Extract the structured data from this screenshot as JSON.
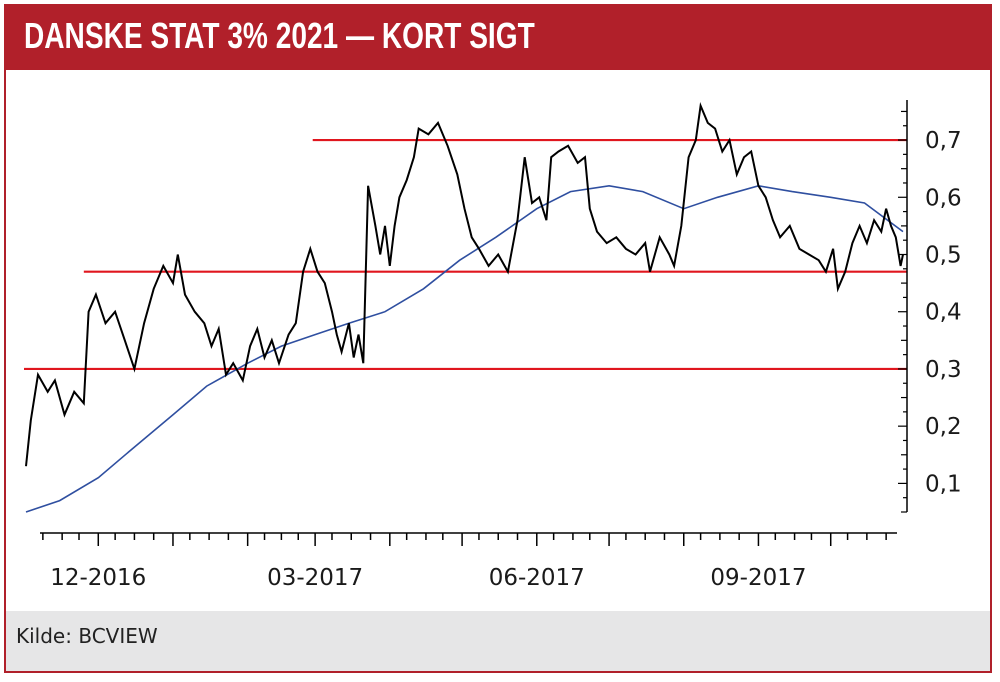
{
  "header": {
    "title": "DANSKE STAT 3% 2021 — KORT SIGT"
  },
  "footer": {
    "source": "Kilde: BCVIEW"
  },
  "colors": {
    "accent": "#b1202a",
    "price": "#000000",
    "average": "#2f4fa0",
    "level": "#e0161e"
  },
  "chart_data": {
    "type": "line",
    "title": "DANSKE STAT 3% 2021 — KORT SIGT",
    "xlabel": "",
    "ylabel": "",
    "ylim": [
      0.05,
      0.77
    ],
    "y_ticks": [
      0.1,
      0.2,
      0.3,
      0.4,
      0.5,
      0.6,
      0.7
    ],
    "y_tick_labels": [
      "0,1",
      "0,2",
      "0,3",
      "0,4",
      "0,5",
      "0,6",
      "0,7"
    ],
    "y_axis_side": "right",
    "x_range": [
      "2016-11-01",
      "2017-10-31"
    ],
    "x_tick_labels": [
      {
        "date": "2016-12-01",
        "label": "12-2016"
      },
      {
        "date": "2017-03-01",
        "label": "03-2017"
      },
      {
        "date": "2017-06-01",
        "label": "06-2017"
      },
      {
        "date": "2017-09-01",
        "label": "09-2017"
      }
    ],
    "grid": false,
    "series": [
      {
        "style": "price",
        "points": [
          [
            "2016-11-01",
            0.13
          ],
          [
            "2016-11-03",
            0.21
          ],
          [
            "2016-11-06",
            0.29
          ],
          [
            "2016-11-10",
            0.26
          ],
          [
            "2016-11-13",
            0.28
          ],
          [
            "2016-11-17",
            0.22
          ],
          [
            "2016-11-21",
            0.26
          ],
          [
            "2016-11-25",
            0.24
          ],
          [
            "2016-11-27",
            0.4
          ],
          [
            "2016-11-30",
            0.43
          ],
          [
            "2016-12-04",
            0.38
          ],
          [
            "2016-12-08",
            0.4
          ],
          [
            "2016-12-12",
            0.35
          ],
          [
            "2016-12-16",
            0.3
          ],
          [
            "2016-12-20",
            0.38
          ],
          [
            "2016-12-24",
            0.44
          ],
          [
            "2016-12-28",
            0.48
          ],
          [
            "2017-01-01",
            0.45
          ],
          [
            "2017-01-03",
            0.5
          ],
          [
            "2017-01-06",
            0.43
          ],
          [
            "2017-01-10",
            0.4
          ],
          [
            "2017-01-14",
            0.38
          ],
          [
            "2017-01-17",
            0.34
          ],
          [
            "2017-01-20",
            0.37
          ],
          [
            "2017-01-23",
            0.29
          ],
          [
            "2017-01-26",
            0.31
          ],
          [
            "2017-01-30",
            0.28
          ],
          [
            "2017-02-02",
            0.34
          ],
          [
            "2017-02-05",
            0.37
          ],
          [
            "2017-02-08",
            0.32
          ],
          [
            "2017-02-11",
            0.35
          ],
          [
            "2017-02-14",
            0.31
          ],
          [
            "2017-02-18",
            0.36
          ],
          [
            "2017-02-21",
            0.38
          ],
          [
            "2017-02-24",
            0.47
          ],
          [
            "2017-02-27",
            0.51
          ],
          [
            "2017-03-02",
            0.47
          ],
          [
            "2017-03-05",
            0.45
          ],
          [
            "2017-03-08",
            0.4
          ],
          [
            "2017-03-10",
            0.36
          ],
          [
            "2017-03-12",
            0.33
          ],
          [
            "2017-03-15",
            0.38
          ],
          [
            "2017-03-17",
            0.32
          ],
          [
            "2017-03-19",
            0.36
          ],
          [
            "2017-03-21",
            0.31
          ],
          [
            "2017-03-23",
            0.62
          ],
          [
            "2017-03-26",
            0.55
          ],
          [
            "2017-03-28",
            0.5
          ],
          [
            "2017-03-30",
            0.55
          ],
          [
            "2017-04-01",
            0.48
          ],
          [
            "2017-04-03",
            0.55
          ],
          [
            "2017-04-05",
            0.6
          ],
          [
            "2017-04-08",
            0.63
          ],
          [
            "2017-04-11",
            0.67
          ],
          [
            "2017-04-13",
            0.72
          ],
          [
            "2017-04-17",
            0.71
          ],
          [
            "2017-04-21",
            0.73
          ],
          [
            "2017-04-25",
            0.69
          ],
          [
            "2017-04-29",
            0.64
          ],
          [
            "2017-05-02",
            0.58
          ],
          [
            "2017-05-05",
            0.53
          ],
          [
            "2017-05-08",
            0.51
          ],
          [
            "2017-05-12",
            0.48
          ],
          [
            "2017-05-16",
            0.5
          ],
          [
            "2017-05-20",
            0.47
          ],
          [
            "2017-05-24",
            0.56
          ],
          [
            "2017-05-27",
            0.67
          ],
          [
            "2017-05-30",
            0.59
          ],
          [
            "2017-06-02",
            0.6
          ],
          [
            "2017-06-05",
            0.56
          ],
          [
            "2017-06-07",
            0.67
          ],
          [
            "2017-06-10",
            0.68
          ],
          [
            "2017-06-14",
            0.69
          ],
          [
            "2017-06-18",
            0.66
          ],
          [
            "2017-06-21",
            0.67
          ],
          [
            "2017-06-23",
            0.58
          ],
          [
            "2017-06-26",
            0.54
          ],
          [
            "2017-06-30",
            0.52
          ],
          [
            "2017-07-04",
            0.53
          ],
          [
            "2017-07-08",
            0.51
          ],
          [
            "2017-07-12",
            0.5
          ],
          [
            "2017-07-16",
            0.52
          ],
          [
            "2017-07-18",
            0.47
          ],
          [
            "2017-07-22",
            0.53
          ],
          [
            "2017-07-26",
            0.5
          ],
          [
            "2017-07-28",
            0.48
          ],
          [
            "2017-07-31",
            0.55
          ],
          [
            "2017-08-03",
            0.67
          ],
          [
            "2017-08-06",
            0.7
          ],
          [
            "2017-08-08",
            0.76
          ],
          [
            "2017-08-11",
            0.73
          ],
          [
            "2017-08-14",
            0.72
          ],
          [
            "2017-08-17",
            0.68
          ],
          [
            "2017-08-20",
            0.7
          ],
          [
            "2017-08-23",
            0.64
          ],
          [
            "2017-08-26",
            0.67
          ],
          [
            "2017-08-29",
            0.68
          ],
          [
            "2017-09-01",
            0.62
          ],
          [
            "2017-09-04",
            0.6
          ],
          [
            "2017-09-07",
            0.56
          ],
          [
            "2017-09-10",
            0.53
          ],
          [
            "2017-09-14",
            0.55
          ],
          [
            "2017-09-18",
            0.51
          ],
          [
            "2017-09-22",
            0.5
          ],
          [
            "2017-09-26",
            0.49
          ],
          [
            "2017-09-29",
            0.47
          ],
          [
            "2017-10-02",
            0.51
          ],
          [
            "2017-10-04",
            0.44
          ],
          [
            "2017-10-07",
            0.47
          ],
          [
            "2017-10-10",
            0.52
          ],
          [
            "2017-10-13",
            0.55
          ],
          [
            "2017-10-16",
            0.52
          ],
          [
            "2017-10-19",
            0.56
          ],
          [
            "2017-10-22",
            0.54
          ],
          [
            "2017-10-24",
            0.58
          ],
          [
            "2017-10-26",
            0.55
          ],
          [
            "2017-10-28",
            0.53
          ],
          [
            "2017-10-30",
            0.48
          ],
          [
            "2017-10-31",
            0.5
          ]
        ]
      },
      {
        "style": "average",
        "points": [
          [
            "2016-11-01",
            0.05
          ],
          [
            "2016-11-15",
            0.07
          ],
          [
            "2016-12-01",
            0.11
          ],
          [
            "2016-12-15",
            0.16
          ],
          [
            "2017-01-01",
            0.22
          ],
          [
            "2017-01-15",
            0.27
          ],
          [
            "2017-02-01",
            0.31
          ],
          [
            "2017-02-15",
            0.34
          ],
          [
            "2017-03-01",
            0.36
          ],
          [
            "2017-03-15",
            0.38
          ],
          [
            "2017-03-30",
            0.4
          ],
          [
            "2017-04-15",
            0.44
          ],
          [
            "2017-04-30",
            0.49
          ],
          [
            "2017-05-15",
            0.53
          ],
          [
            "2017-06-01",
            0.58
          ],
          [
            "2017-06-15",
            0.61
          ],
          [
            "2017-07-01",
            0.62
          ],
          [
            "2017-07-15",
            0.61
          ],
          [
            "2017-08-01",
            0.58
          ],
          [
            "2017-08-15",
            0.6
          ],
          [
            "2017-09-01",
            0.62
          ],
          [
            "2017-09-15",
            0.61
          ],
          [
            "2017-10-01",
            0.6
          ],
          [
            "2017-10-15",
            0.59
          ],
          [
            "2017-10-31",
            0.54
          ]
        ]
      }
    ],
    "levels": [
      {
        "value": 0.7,
        "from": "2017-02-28",
        "to": "2017-10-31"
      },
      {
        "value": 0.47,
        "from": "2016-11-25",
        "to": "2017-10-31"
      },
      {
        "value": 0.3,
        "from": "2016-10-31",
        "to": "2017-10-31"
      }
    ]
  }
}
